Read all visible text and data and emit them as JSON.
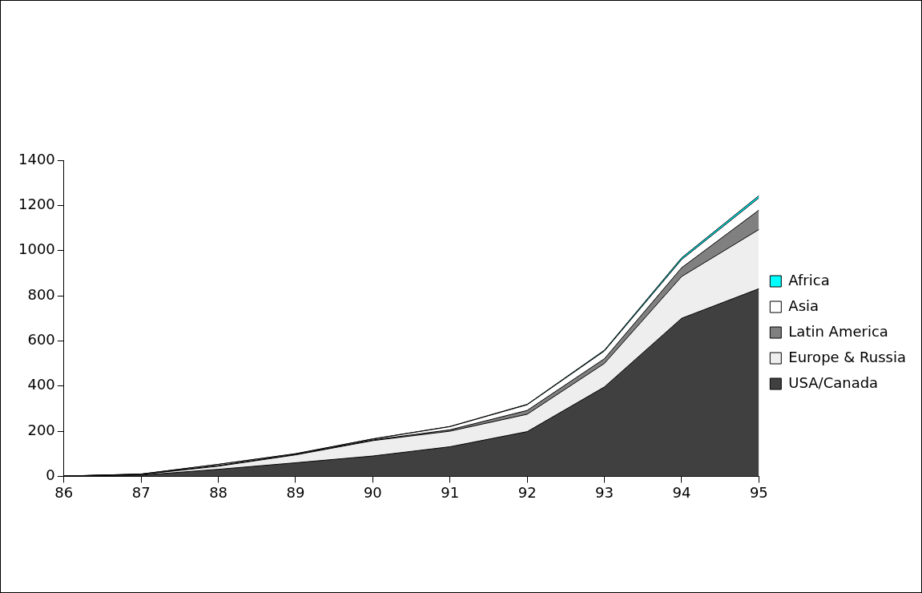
{
  "chart_data": {
    "type": "area",
    "stacked": true,
    "categories": [
      "86",
      "87",
      "88",
      "89",
      "90",
      "91",
      "92",
      "93",
      "94",
      "95"
    ],
    "series": [
      {
        "name": "USA/Canada",
        "color": "#404040",
        "values": [
          1,
          5,
          31,
          60,
          90,
          131,
          198,
          396,
          700,
          831
        ]
      },
      {
        "name": "Europe & Russia",
        "color": "#eeeeee",
        "values": [
          0,
          3,
          14,
          35,
          68,
          69,
          77,
          104,
          185,
          262
        ]
      },
      {
        "name": "Latin America",
        "color": "#808080",
        "values": [
          0,
          1,
          3,
          2,
          3,
          6,
          17,
          21,
          39,
          86
        ]
      },
      {
        "name": "Asia",
        "color": "#ffffff",
        "values": [
          0,
          1,
          5,
          3,
          4,
          14,
          25,
          34,
          36,
          54
        ]
      },
      {
        "name": "Africa",
        "color": "#00ffff",
        "values": [
          0,
          0,
          0,
          0,
          1,
          1,
          2,
          4,
          8,
          10
        ]
      }
    ],
    "ylim": [
      0,
      1400
    ],
    "yticks": [
      0,
      200,
      400,
      600,
      800,
      1000,
      1200,
      1400
    ],
    "grid": false,
    "legend": "right"
  }
}
